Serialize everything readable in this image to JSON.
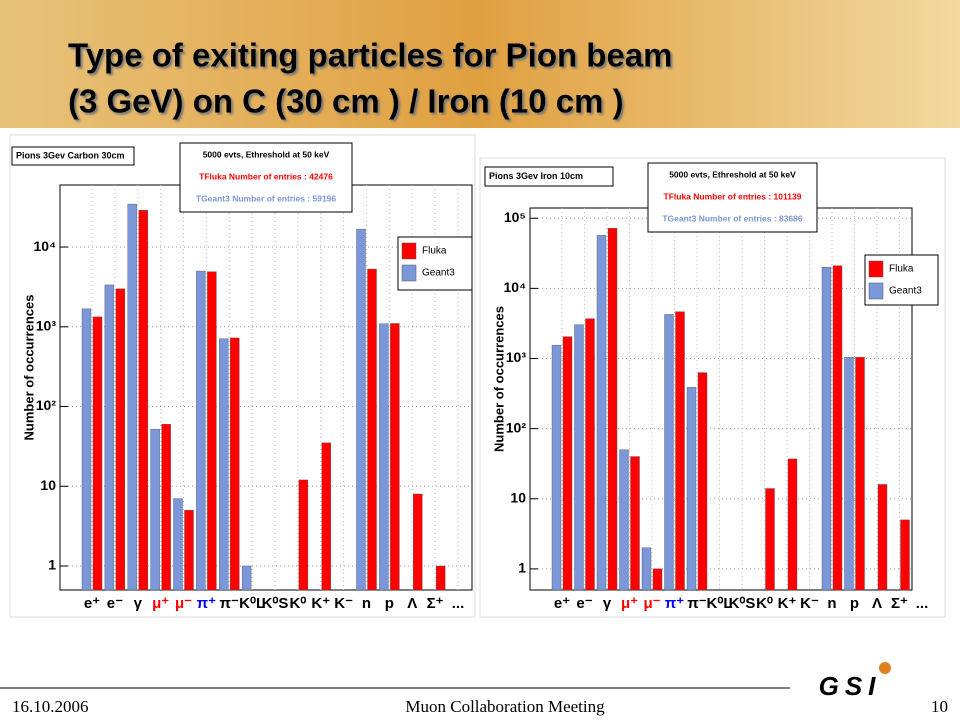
{
  "slide_title": [
    "Type of exiting particles for Pion beam",
    "(3 GeV) on C (30 cm ) / Iron (10 cm )"
  ],
  "footer": {
    "date": "16.10.2006",
    "meeting": "Muon Collaboration Meeting",
    "page": "10",
    "logo": "GSI"
  },
  "chart_data": [
    {
      "type": "bar",
      "panel_title": "Pions 3Gev Carbon 30cm",
      "stats": [
        "5000 evts, Ethreshold at 50 keV",
        "TFluka Number of entries : 42476",
        "TGeant3 Number of entries : 59196"
      ],
      "y_label": "Number of occurrences",
      "log_y": true,
      "grid": true,
      "legend": "upper right",
      "categories": [
        "e⁺",
        "e⁻",
        "γ",
        "μ⁺",
        "μ⁻",
        "π⁺",
        "π⁻",
        "K⁰L",
        "K⁰S",
        "K⁰",
        "K⁺",
        "K⁻",
        "n",
        "p",
        "Λ",
        "Σ⁺",
        "..."
      ],
      "category_colors": [
        "#000000",
        "#000000",
        "#000000",
        "#ff0000",
        "#ff0000",
        "#0000ff",
        "#000000",
        "#000000",
        "#000000",
        "#000000",
        "#000000",
        "#000000",
        "#000000",
        "#000000",
        "#000000",
        "#000000",
        "#000000"
      ],
      "series": [
        {
          "name": "Fluka",
          "color": "#ff0000",
          "values": [
            1330,
            2990,
            29000,
            60,
            5,
            4900,
            725,
            null,
            null,
            12,
            35,
            null,
            5300,
            1100,
            8,
            1,
            null
          ]
        },
        {
          "name": "Geant3",
          "color": "#7b96d9",
          "values": [
            1680,
            3350,
            34600,
            52,
            7,
            5000,
            710,
            1,
            null,
            null,
            null,
            null,
            16800,
            1090,
            null,
            null,
            null
          ]
        }
      ],
      "ylim": [
        0.5,
        60000
      ],
      "yticks": [
        1,
        10,
        {
          "value": 100,
          "label": "10²"
        },
        {
          "value": 1000,
          "label": "10³"
        },
        {
          "value": 10000,
          "label": "10⁴"
        }
      ]
    },
    {
      "type": "bar",
      "panel_title": "Pions 3Gev Iron 10cm",
      "stats": [
        "5000 evts, Ethreshold at 50 keV",
        "TFluka Number of entries : 101139",
        "TGeant3 Number of entries : 83686"
      ],
      "y_label": "Number of occurrences",
      "log_y": true,
      "grid": true,
      "legend": "upper right",
      "categories": [
        "e⁺",
        "e⁻",
        "γ",
        "μ⁺",
        "μ⁻",
        "π⁺",
        "π⁻",
        "K⁰L",
        "K⁰S",
        "K⁰",
        "K⁺",
        "K⁻",
        "n",
        "p",
        "Λ",
        "Σ⁺",
        "..."
      ],
      "category_colors": [
        "#000000",
        "#000000",
        "#000000",
        "#ff0000",
        "#ff0000",
        "#0000ff",
        "#000000",
        "#000000",
        "#000000",
        "#000000",
        "#000000",
        "#000000",
        "#000000",
        "#000000",
        "#000000",
        "#000000",
        "#000000"
      ],
      "series": [
        {
          "name": "Fluka",
          "color": "#ff0000",
          "values": [
            2050,
            3700,
            72000,
            40,
            1,
            4650,
            630,
            null,
            null,
            14,
            37,
            null,
            21000,
            1040,
            16,
            5,
            null
          ]
        },
        {
          "name": "Geant3",
          "color": "#7b96d9",
          "values": [
            1550,
            3040,
            57000,
            50,
            2,
            4250,
            390,
            null,
            null,
            null,
            null,
            null,
            20000,
            1040,
            null,
            null,
            null
          ]
        }
      ],
      "ylim": [
        0.5,
        140000
      ],
      "yticks": [
        1,
        10,
        {
          "value": 100,
          "label": "10²"
        },
        {
          "value": 1000,
          "label": "10³"
        },
        {
          "value": 10000,
          "label": "10⁴"
        },
        {
          "value": 100000,
          "label": "10⁵"
        }
      ]
    }
  ]
}
